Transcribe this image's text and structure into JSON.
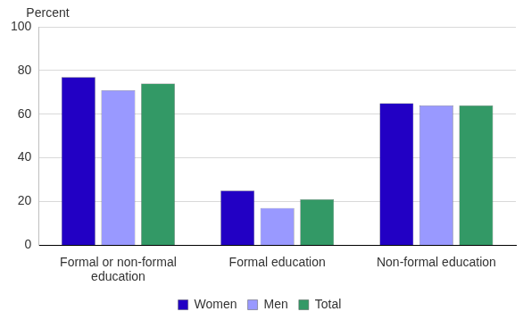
{
  "chart_data": {
    "type": "bar",
    "ylabel": "Percent",
    "categories": [
      "Formal or non-formal education",
      "Formal education",
      "Non-formal education"
    ],
    "series": [
      {
        "name": "Women",
        "color": "#2200c4",
        "values": [
          77,
          25,
          65
        ]
      },
      {
        "name": "Men",
        "color": "#9999ff",
        "values": [
          71,
          17,
          64
        ]
      },
      {
        "name": "Total",
        "color": "#339966",
        "values": [
          74,
          21,
          64
        ]
      }
    ],
    "ylim": [
      0,
      100
    ],
    "yticks": [
      0,
      20,
      40,
      60,
      80,
      100
    ],
    "grid": true,
    "legend": "bottom"
  }
}
